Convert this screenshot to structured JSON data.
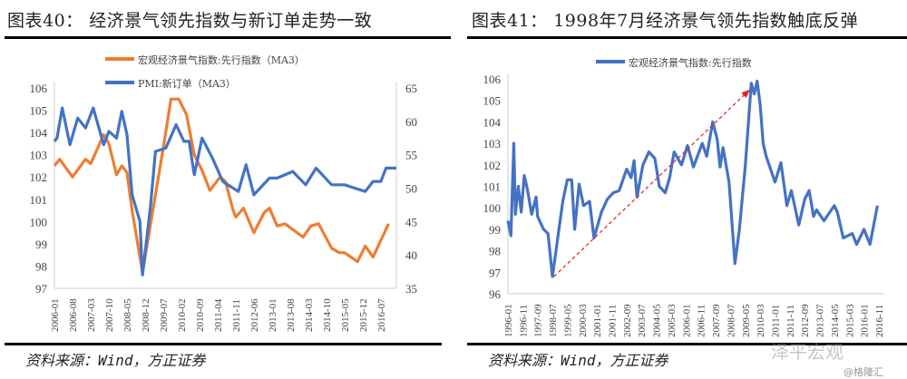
{
  "left": {
    "title": "图表40：  经济景气领先指数与新订单走势一致",
    "source": "资料来源：Wind，方正证券"
  },
  "right": {
    "title": "图表41：  1998年7月经济景气领先指数触底反弹",
    "source": "资料来源：Wind，方正证券"
  },
  "watermark": "泽平宏观",
  "credit": "@格隆汇",
  "chart_data": [
    {
      "type": "line",
      "xlabel": "",
      "ylabel": "",
      "ylim": [
        97,
        106
      ],
      "y2lim": [
        35,
        65
      ],
      "yticks": [
        97,
        98,
        99,
        100,
        101,
        102,
        103,
        104,
        105,
        106
      ],
      "y2ticks": [
        35,
        40,
        45,
        50,
        55,
        60,
        65
      ],
      "xticks": [
        "2006-01",
        "2006-08",
        "2007-03",
        "2007-10",
        "2008-05",
        "2008-12",
        "2009-07",
        "2010-02",
        "2010-09",
        "2011-04",
        "2011-11",
        "2012-06",
        "2013-01",
        "2013-08",
        "2014-03",
        "2014-10",
        "2015-05",
        "2015-12",
        "2016-07"
      ],
      "legend_position": "top",
      "grid": false,
      "series": [
        {
          "name": "宏观经济景气指数:先行指数（MA3）",
          "axis": "left",
          "color": "#ED7D31",
          "points": [
            [
              "2006-01",
              102.5
            ],
            [
              "2006-03",
              102.8
            ],
            [
              "2006-08",
              102.0
            ],
            [
              "2007-01",
              102.8
            ],
            [
              "2007-03",
              102.6
            ],
            [
              "2007-08",
              103.9
            ],
            [
              "2007-10",
              103.5
            ],
            [
              "2008-01",
              102.1
            ],
            [
              "2008-03",
              102.5
            ],
            [
              "2008-05",
              102.2
            ],
            [
              "2008-07",
              100.5
            ],
            [
              "2008-11",
              97.7
            ],
            [
              "2009-03",
              100.5
            ],
            [
              "2009-07",
              103.3
            ],
            [
              "2009-10",
              105.5
            ],
            [
              "2010-01",
              105.5
            ],
            [
              "2010-04",
              104.8
            ],
            [
              "2010-07",
              103.0
            ],
            [
              "2010-10",
              102.3
            ],
            [
              "2011-01",
              101.4
            ],
            [
              "2011-05",
              102.0
            ],
            [
              "2011-07",
              101.8
            ],
            [
              "2011-10",
              100.5
            ],
            [
              "2011-11",
              100.2
            ],
            [
              "2012-02",
              100.6
            ],
            [
              "2012-06",
              99.5
            ],
            [
              "2012-10",
              100.4
            ],
            [
              "2012-12",
              100.6
            ],
            [
              "2013-03",
              99.8
            ],
            [
              "2013-06",
              99.9
            ],
            [
              "2014-01",
              99.3
            ],
            [
              "2014-04",
              99.8
            ],
            [
              "2014-07",
              99.9
            ],
            [
              "2014-12",
              98.8
            ],
            [
              "2015-03",
              98.6
            ],
            [
              "2015-05",
              98.6
            ],
            [
              "2015-10",
              98.2
            ],
            [
              "2016-01",
              98.9
            ],
            [
              "2016-04",
              98.4
            ],
            [
              "2016-10",
              99.9
            ]
          ]
        },
        {
          "name": "PMI:新订单（MA3）",
          "axis": "right",
          "color": "#4472C4",
          "points": [
            [
              "2006-01",
              57
            ],
            [
              "2006-02",
              57.5
            ],
            [
              "2006-04",
              62
            ],
            [
              "2006-07",
              56.5
            ],
            [
              "2006-10",
              60.5
            ],
            [
              "2007-01",
              59
            ],
            [
              "2007-04",
              62
            ],
            [
              "2007-08",
              56.5
            ],
            [
              "2007-10",
              58.5
            ],
            [
              "2008-01",
              57.5
            ],
            [
              "2008-03",
              61.5
            ],
            [
              "2008-05",
              58
            ],
            [
              "2008-07",
              49
            ],
            [
              "2008-10",
              45
            ],
            [
              "2008-11",
              37
            ],
            [
              "2009-02",
              47
            ],
            [
              "2009-04",
              55.5
            ],
            [
              "2009-08",
              56
            ],
            [
              "2009-12",
              59.5
            ],
            [
              "2010-03",
              57
            ],
            [
              "2010-05",
              57
            ],
            [
              "2010-07",
              52
            ],
            [
              "2010-10",
              57.5
            ],
            [
              "2011-02",
              54.5
            ],
            [
              "2011-06",
              51
            ],
            [
              "2011-12",
              49.5
            ],
            [
              "2012-03",
              53.5
            ],
            [
              "2012-06",
              49
            ],
            [
              "2012-12",
              51.5
            ],
            [
              "2013-03",
              51.5
            ],
            [
              "2013-09",
              52.5
            ],
            [
              "2014-02",
              50.5
            ],
            [
              "2014-06",
              53
            ],
            [
              "2014-12",
              50.5
            ],
            [
              "2015-05",
              50.5
            ],
            [
              "2015-09",
              50
            ],
            [
              "2016-01",
              49.5
            ],
            [
              "2016-04",
              51
            ],
            [
              "2016-07",
              51
            ],
            [
              "2016-09",
              53
            ],
            [
              "2017-01",
              53
            ]
          ]
        }
      ]
    },
    {
      "type": "line",
      "xlabel": "",
      "ylabel": "",
      "ylim": [
        96,
        106
      ],
      "yticks": [
        96,
        97,
        98,
        99,
        100,
        101,
        102,
        103,
        104,
        105,
        106
      ],
      "xticks": [
        "1996-01",
        "1996-11",
        "1997-09",
        "1998-07",
        "1999-05",
        "2000-03",
        "2001-01",
        "2001-11",
        "2002-09",
        "2003-07",
        "2004-05",
        "2005-03",
        "2006-01",
        "2006-11",
        "2007-09",
        "2008-07",
        "2009-05",
        "2010-03",
        "2011-01",
        "2011-11",
        "2012-09",
        "2013-07",
        "2014-05",
        "2015-03",
        "2016-01",
        "2016-11"
      ],
      "legend_position": "top",
      "grid": false,
      "annotation": {
        "type": "dashed-arrow",
        "color": "#E02020",
        "from": [
          "1998-08",
          96.8
        ],
        "to": [
          "2009-08",
          105.5
        ]
      },
      "series": [
        {
          "name": "宏观经济景气指数:先行指数",
          "color": "#4472C4",
          "points": [
            [
              "1996-01",
              99.4
            ],
            [
              "1996-03",
              98.7
            ],
            [
              "1996-05",
              103.0
            ],
            [
              "1996-06",
              99.7
            ],
            [
              "1996-08",
              101.0
            ],
            [
              "1996-10",
              99.8
            ],
            [
              "1996-12",
              101.5
            ],
            [
              "1997-02",
              100.9
            ],
            [
              "1997-05",
              99.7
            ],
            [
              "1997-08",
              100.5
            ],
            [
              "1997-09",
              99.6
            ],
            [
              "1998-01",
              99.0
            ],
            [
              "1998-04",
              98.8
            ],
            [
              "1998-07",
              96.8
            ],
            [
              "1998-11",
              98.8
            ],
            [
              "1999-02",
              100.3
            ],
            [
              "1999-05",
              101.3
            ],
            [
              "1999-08",
              101.3
            ],
            [
              "1999-10",
              99.0
            ],
            [
              "2000-01",
              101.1
            ],
            [
              "2000-04",
              100.1
            ],
            [
              "2000-08",
              100.3
            ],
            [
              "2000-11",
              98.6
            ],
            [
              "2001-04",
              99.8
            ],
            [
              "2001-08",
              100.4
            ],
            [
              "2001-12",
              100.7
            ],
            [
              "2002-04",
              100.8
            ],
            [
              "2002-09",
              101.8
            ],
            [
              "2002-12",
              101.4
            ],
            [
              "2003-02",
              102.2
            ],
            [
              "2003-04",
              100.5
            ],
            [
              "2003-08",
              102.0
            ],
            [
              "2003-12",
              102.6
            ],
            [
              "2004-04",
              102.3
            ],
            [
              "2004-07",
              101.0
            ],
            [
              "2004-11",
              100.7
            ],
            [
              "2005-02",
              101.4
            ],
            [
              "2005-05",
              102.6
            ],
            [
              "2005-10",
              102.0
            ],
            [
              "2006-02",
              102.9
            ],
            [
              "2006-06",
              101.9
            ],
            [
              "2006-12",
              103.0
            ],
            [
              "2007-03",
              102.4
            ],
            [
              "2007-07",
              104.0
            ],
            [
              "2007-10",
              103.2
            ],
            [
              "2007-12",
              101.9
            ],
            [
              "2008-02",
              102.8
            ],
            [
              "2008-06",
              101.2
            ],
            [
              "2008-10",
              97.4
            ],
            [
              "2009-01",
              99.0
            ],
            [
              "2009-05",
              102.0
            ],
            [
              "2009-09",
              105.8
            ],
            [
              "2009-11",
              105.3
            ],
            [
              "2010-01",
              105.9
            ],
            [
              "2010-03",
              104.8
            ],
            [
              "2010-05",
              103.0
            ],
            [
              "2010-07",
              102.4
            ],
            [
              "2011-01",
              101.2
            ],
            [
              "2011-05",
              102.1
            ],
            [
              "2011-09",
              100.1
            ],
            [
              "2011-12",
              100.8
            ],
            [
              "2012-05",
              99.2
            ],
            [
              "2012-09",
              100.4
            ],
            [
              "2012-12",
              100.8
            ],
            [
              "2013-03",
              99.6
            ],
            [
              "2013-05",
              99.9
            ],
            [
              "2013-10",
              99.4
            ],
            [
              "2014-02",
              99.8
            ],
            [
              "2014-05",
              100.1
            ],
            [
              "2014-07",
              99.8
            ],
            [
              "2014-11",
              98.6
            ],
            [
              "2015-05",
              98.8
            ],
            [
              "2015-08",
              98.3
            ],
            [
              "2016-01",
              99.0
            ],
            [
              "2016-05",
              98.3
            ],
            [
              "2016-10",
              100.1
            ]
          ]
        }
      ]
    }
  ]
}
